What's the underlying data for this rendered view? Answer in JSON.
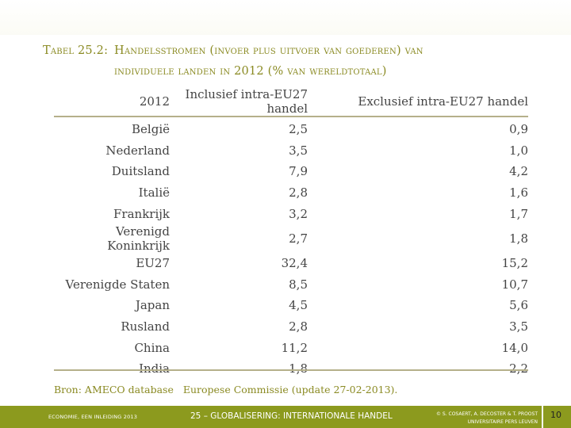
{
  "title": {
    "prefix": "Tabel 25.2:",
    "line1": "Handelsstromen (invoer plus uitvoer van goederen) van",
    "line2": "individuele landen in 2012 (% van wereldtotaal)"
  },
  "table": {
    "headers": [
      "2012",
      "Inclusief intra-EU27 handel",
      "Exclusief intra-EU27 handel"
    ],
    "rows": [
      [
        "België",
        "2,5",
        "0,9"
      ],
      [
        "Nederland",
        "3,5",
        "1,0"
      ],
      [
        "Duitsland",
        "7,9",
        "4,2"
      ],
      [
        "Italië",
        "2,8",
        "1,6"
      ],
      [
        "Frankrijk",
        "3,2",
        "1,7"
      ],
      [
        "Verenigd Koninkrijk",
        "2,7",
        "1,8"
      ],
      [
        "EU27",
        "32,4",
        "15,2"
      ],
      [
        "Verenigde Staten",
        "8,5",
        "10,7"
      ],
      [
        "Japan",
        "4,5",
        "5,6"
      ],
      [
        "Rusland",
        "2,8",
        "3,5"
      ],
      [
        "China",
        "11,2",
        "14,0"
      ],
      [
        "India",
        "1,8",
        "2,2"
      ]
    ]
  },
  "source": {
    "part1": "Bron: AMECO database",
    "part2": "Europese Commissie (update 27-02-2013)."
  },
  "footer": {
    "left": "ECONOMIE, EEN INLEIDING 2013",
    "center": "25 – GLOBALISERING: INTERNATIONALE HANDEL",
    "right_line1": "© S. COSAERT, A. DECOSTER & T. PROOST",
    "right_line2": "UNIVERSITAIRE PERS LEUVEN",
    "page": "10"
  },
  "colors": {
    "accent": "#8a8a22",
    "footer_bg": "#8c9a1e",
    "text": "#444444",
    "rule": "#b5b08a"
  }
}
